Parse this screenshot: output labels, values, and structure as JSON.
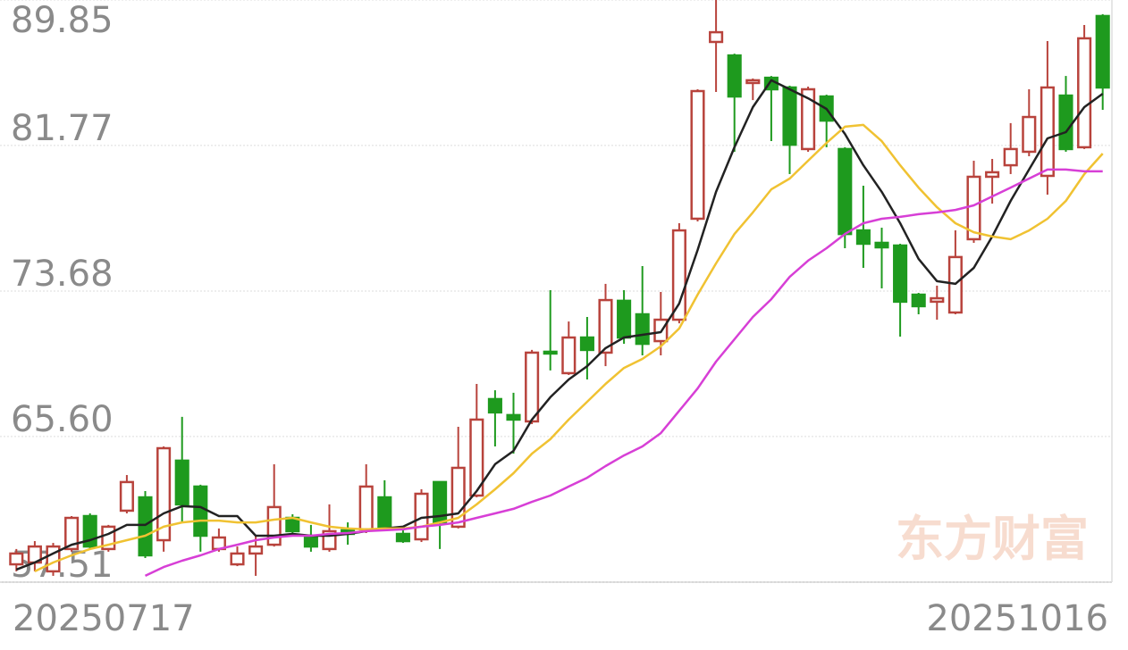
{
  "chart_data": {
    "type": "candlestick",
    "watermark": "东方财富",
    "categories": [
      "20250717",
      null,
      null,
      null,
      null,
      null,
      null,
      null,
      null,
      null,
      null,
      null,
      null,
      null,
      null,
      null,
      null,
      null,
      null,
      null,
      null,
      null,
      null,
      null,
      null,
      null,
      null,
      null,
      null,
      null,
      null,
      null,
      null,
      null,
      null,
      null,
      null,
      null,
      null,
      null,
      null,
      null,
      null,
      null,
      null,
      null,
      null,
      null,
      null,
      null,
      null,
      null,
      null,
      null,
      null,
      null,
      null,
      null,
      null,
      "20251016"
    ],
    "open": [
      58.5,
      58.6,
      58.11,
      59.35,
      61.18,
      59.35,
      61.48,
      62.22,
      59.84,
      64.26,
      62.82,
      59.35,
      58.5,
      59.1,
      59.59,
      61.08,
      60.09,
      59.35,
      60.39,
      60.44,
      62.22,
      60.19,
      59.89,
      63.07,
      60.59,
      62.32,
      67.68,
      66.79,
      66.44,
      70.31,
      69.12,
      71.1,
      70.26,
      73.14,
      72.39,
      70.9,
      72.09,
      77.7,
      87.52,
      86.77,
      85.24,
      85.53,
      84.99,
      81.57,
      84.49,
      81.57,
      77.05,
      76.36,
      76.21,
      73.48,
      73.09,
      72.49,
      76.56,
      80.03,
      80.67,
      81.42,
      80.08,
      84.54,
      81.67,
      88.96
    ],
    "high": [
      59.35,
      59.79,
      59.69,
      61.18,
      61.33,
      60.69,
      63.46,
      62.57,
      65.05,
      66.69,
      62.92,
      60.49,
      59.49,
      60.09,
      64.06,
      61.28,
      60.69,
      61.83,
      60.83,
      64.06,
      63.17,
      60.59,
      62.67,
      63.07,
      66.14,
      68.52,
      68.17,
      68.03,
      70.41,
      73.73,
      71.99,
      72.24,
      74.08,
      73.73,
      75.07,
      73.63,
      77.45,
      84.89,
      89.85,
      86.87,
      85.49,
      85.63,
      85.09,
      85.04,
      84.59,
      81.67,
      79.53,
      77.2,
      76.31,
      73.58,
      73.98,
      77.05,
      80.92,
      81.02,
      83.01,
      84.89,
      87.57,
      85.63,
      88.46,
      89.06
    ],
    "low": [
      58.11,
      58.11,
      57.86,
      59.2,
      59.35,
      59.2,
      61.33,
      58.85,
      59.2,
      60.83,
      59.2,
      59.2,
      58.4,
      57.86,
      59.49,
      60.19,
      59.2,
      59.2,
      59.59,
      60.24,
      60.34,
      59.69,
      59.74,
      59.35,
      60.49,
      62.22,
      65.05,
      64.65,
      66.29,
      69.27,
      69.02,
      68.77,
      69.51,
      70.75,
      70.11,
      70.11,
      71.89,
      77.55,
      84.74,
      81.42,
      84.29,
      82.01,
      80.18,
      81.42,
      81.67,
      76.06,
      74.97,
      73.83,
      71.15,
      72.39,
      72.09,
      72.39,
      76.36,
      78.54,
      80.18,
      81.17,
      79.04,
      81.42,
      81.57,
      83.75
    ],
    "close": [
      59.1,
      59.49,
      59.49,
      61.08,
      59.49,
      60.59,
      63.07,
      59.0,
      64.95,
      61.83,
      60.09,
      59.99,
      59.1,
      59.49,
      61.68,
      60.34,
      59.49,
      60.34,
      60.19,
      62.82,
      60.59,
      59.79,
      62.42,
      60.83,
      63.86,
      66.54,
      66.94,
      66.54,
      70.26,
      70.21,
      71.1,
      70.41,
      73.18,
      71.1,
      70.75,
      72.09,
      77.05,
      84.79,
      88.06,
      84.49,
      85.39,
      84.89,
      81.81,
      84.89,
      83.15,
      76.85,
      76.31,
      76.11,
      73.09,
      72.84,
      73.28,
      75.57,
      80.03,
      80.28,
      81.57,
      83.35,
      84.99,
      81.57,
      87.72,
      84.99
    ],
    "up_color": "#b8433c",
    "down_color": "#1e9a1e",
    "lines": [
      {
        "color": "#222222",
        "values": [
          58.21,
          58.6,
          59.1,
          59.59,
          59.84,
          60.19,
          60.69,
          60.69,
          61.33,
          61.73,
          61.68,
          61.18,
          61.18,
          60.09,
          60.09,
          60.19,
          60.09,
          60.09,
          60.19,
          60.34,
          60.49,
          60.59,
          61.08,
          61.18,
          61.33,
          62.57,
          64.06,
          64.8,
          66.54,
          67.78,
          68.77,
          69.51,
          70.51,
          71.1,
          71.25,
          71.4,
          72.99,
          75.96,
          79.19,
          81.67,
          83.9,
          85.39,
          84.89,
          84.39,
          83.8,
          82.41,
          80.67,
          79.19,
          77.45,
          75.47,
          74.23,
          74.08,
          74.97,
          76.71,
          78.69,
          80.43,
          82.16,
          82.51,
          83.9,
          84.64
        ]
      },
      {
        "color": "#f0c232",
        "values": [
          null,
          58.11,
          58.6,
          59.0,
          59.35,
          59.59,
          59.84,
          60.09,
          60.59,
          60.83,
          60.93,
          60.93,
          60.83,
          60.83,
          60.98,
          61.08,
          60.83,
          60.59,
          60.49,
          60.44,
          60.49,
          60.49,
          60.59,
          60.83,
          61.08,
          61.83,
          62.67,
          63.56,
          64.65,
          65.45,
          66.54,
          67.53,
          68.52,
          69.41,
          69.91,
          70.61,
          71.6,
          73.48,
          75.22,
          76.85,
          78.05,
          79.33,
          79.93,
          80.92,
          81.91,
          82.81,
          82.91,
          82.01,
          80.67,
          79.43,
          78.34,
          77.45,
          76.95,
          76.71,
          76.56,
          77.05,
          77.7,
          78.69,
          80.18,
          81.32
        ]
      },
      {
        "color": "#d73fd6",
        "values": [
          null,
          null,
          null,
          null,
          null,
          null,
          null,
          57.86,
          58.35,
          58.7,
          59.0,
          59.35,
          59.59,
          59.84,
          59.99,
          60.09,
          60.09,
          60.19,
          60.24,
          60.34,
          60.39,
          60.44,
          60.59,
          60.69,
          60.83,
          61.08,
          61.33,
          61.58,
          61.97,
          62.32,
          62.82,
          63.31,
          63.96,
          64.55,
          65.05,
          65.79,
          67.03,
          68.27,
          69.76,
          71.0,
          72.24,
          73.23,
          74.47,
          75.37,
          76.06,
          76.85,
          77.45,
          77.7,
          77.8,
          77.95,
          78.05,
          78.19,
          78.44,
          78.94,
          79.43,
          79.93,
          80.43,
          80.43,
          80.33,
          80.33
        ]
      }
    ],
    "ylim": [
      57.51,
      89.85
    ],
    "yticks": [
      57.51,
      {
        "value": 65.6,
        "label": "65.60"
      },
      73.68,
      81.77,
      89.85
    ],
    "grid": true
  }
}
